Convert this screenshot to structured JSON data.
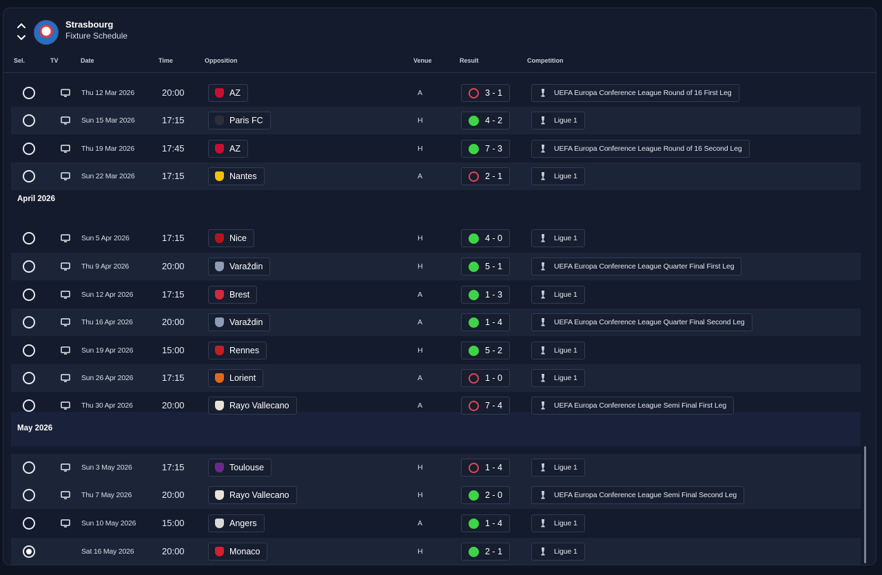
{
  "header": {
    "club": "Strasbourg",
    "subtitle": "Fixture Schedule"
  },
  "columns": {
    "sel": "Sel.",
    "tv": "TV",
    "date": "Date",
    "time": "Time",
    "opposition": "Opposition",
    "venue": "Venue",
    "result": "Result",
    "competition": "Competition"
  },
  "months": {
    "april": "April 2026",
    "may": "May 2026"
  },
  "colors": {
    "win": "#3fd447",
    "loss": "#e04850",
    "background": "#141b2c"
  },
  "fixtures": [
    {
      "date": "Thu 12 Mar 2026",
      "time": "20:00",
      "opponent": "AZ",
      "badge": "#c8102e",
      "venue": "A",
      "result": "3 - 1",
      "outcome": "loss",
      "competition": "UEFA Europa Conference League Round of 16  First Leg",
      "tv": true,
      "selected": false
    },
    {
      "date": "Sun 15 Mar 2026",
      "time": "17:15",
      "opponent": "Paris FC",
      "badge": "#2b2f3a",
      "venue": "H",
      "result": "4 - 2",
      "outcome": "win",
      "competition": "Ligue 1",
      "tv": true,
      "selected": false
    },
    {
      "date": "Thu 19 Mar 2026",
      "time": "17:45",
      "opponent": "AZ",
      "badge": "#c8102e",
      "venue": "H",
      "result": "7 - 3",
      "outcome": "win",
      "competition": "UEFA Europa Conference League Round of 16  Second Leg",
      "tv": true,
      "selected": false
    },
    {
      "date": "Sun 22 Mar 2026",
      "time": "17:15",
      "opponent": "Nantes",
      "badge": "#f2c200",
      "venue": "A",
      "result": "2 - 1",
      "outcome": "loss",
      "competition": "Ligue 1",
      "tv": true,
      "selected": false
    },
    {
      "date": "Sun 5 Apr 2026",
      "time": "17:15",
      "opponent": "Nice",
      "badge": "#b3151d",
      "venue": "H",
      "result": "4 - 0",
      "outcome": "win",
      "competition": "Ligue 1",
      "tv": true,
      "selected": false
    },
    {
      "date": "Thu 9 Apr 2026",
      "time": "20:00",
      "opponent": "Varaždin",
      "badge": "#8e9bb5",
      "venue": "H",
      "result": "5 - 1",
      "outcome": "win",
      "competition": "UEFA Europa Conference League Quarter Final First Leg",
      "tv": true,
      "selected": false
    },
    {
      "date": "Sun 12 Apr 2026",
      "time": "17:15",
      "opponent": "Brest",
      "badge": "#d7263d",
      "venue": "A",
      "result": "1 - 3",
      "outcome": "win",
      "competition": "Ligue 1",
      "tv": true,
      "selected": false
    },
    {
      "date": "Thu 16 Apr 2026",
      "time": "20:00",
      "opponent": "Varaždin",
      "badge": "#8e9bb5",
      "venue": "A",
      "result": "1 - 4",
      "outcome": "win",
      "competition": "UEFA Europa Conference League Quarter Final Second Leg",
      "tv": true,
      "selected": false
    },
    {
      "date": "Sun 19 Apr 2026",
      "time": "15:00",
      "opponent": "Rennes",
      "badge": "#c41e24",
      "venue": "H",
      "result": "5 - 2",
      "outcome": "win",
      "competition": "Ligue 1",
      "tv": true,
      "selected": false
    },
    {
      "date": "Sun 26 Apr 2026",
      "time": "17:15",
      "opponent": "Lorient",
      "badge": "#e06a1b",
      "venue": "A",
      "result": "1 - 0",
      "outcome": "loss",
      "competition": "Ligue 1",
      "tv": true,
      "selected": false
    },
    {
      "date": "Thu 30 Apr 2026",
      "time": "20:00",
      "opponent": "Rayo Vallecano",
      "badge": "#e9e2d6",
      "venue": "A",
      "result": "7 - 4",
      "outcome": "loss",
      "competition": "UEFA Europa Conference League Semi Final First Leg",
      "tv": true,
      "selected": false
    },
    {
      "date": "Sun 3 May 2026",
      "time": "17:15",
      "opponent": "Toulouse",
      "badge": "#6a2a8c",
      "venue": "H",
      "result": "1 - 4",
      "outcome": "loss",
      "competition": "Ligue 1",
      "tv": true,
      "selected": false
    },
    {
      "date": "Thu 7 May 2026",
      "time": "20:00",
      "opponent": "Rayo Vallecano",
      "badge": "#e9e2d6",
      "venue": "H",
      "result": "2 - 0",
      "outcome": "win",
      "competition": "UEFA Europa Conference League Semi Final Second Leg",
      "tv": true,
      "selected": false
    },
    {
      "date": "Sun 10 May 2026",
      "time": "15:00",
      "opponent": "Angers",
      "badge": "#d9d9d9",
      "venue": "A",
      "result": "1 - 4",
      "outcome": "win",
      "competition": "Ligue 1",
      "tv": true,
      "selected": false
    },
    {
      "date": "Sat 16 May 2026",
      "time": "20:00",
      "opponent": "Monaco",
      "badge": "#d4202e",
      "venue": "H",
      "result": "2 - 1",
      "outcome": "win",
      "competition": "Ligue 1",
      "tv": false,
      "selected": true
    }
  ]
}
